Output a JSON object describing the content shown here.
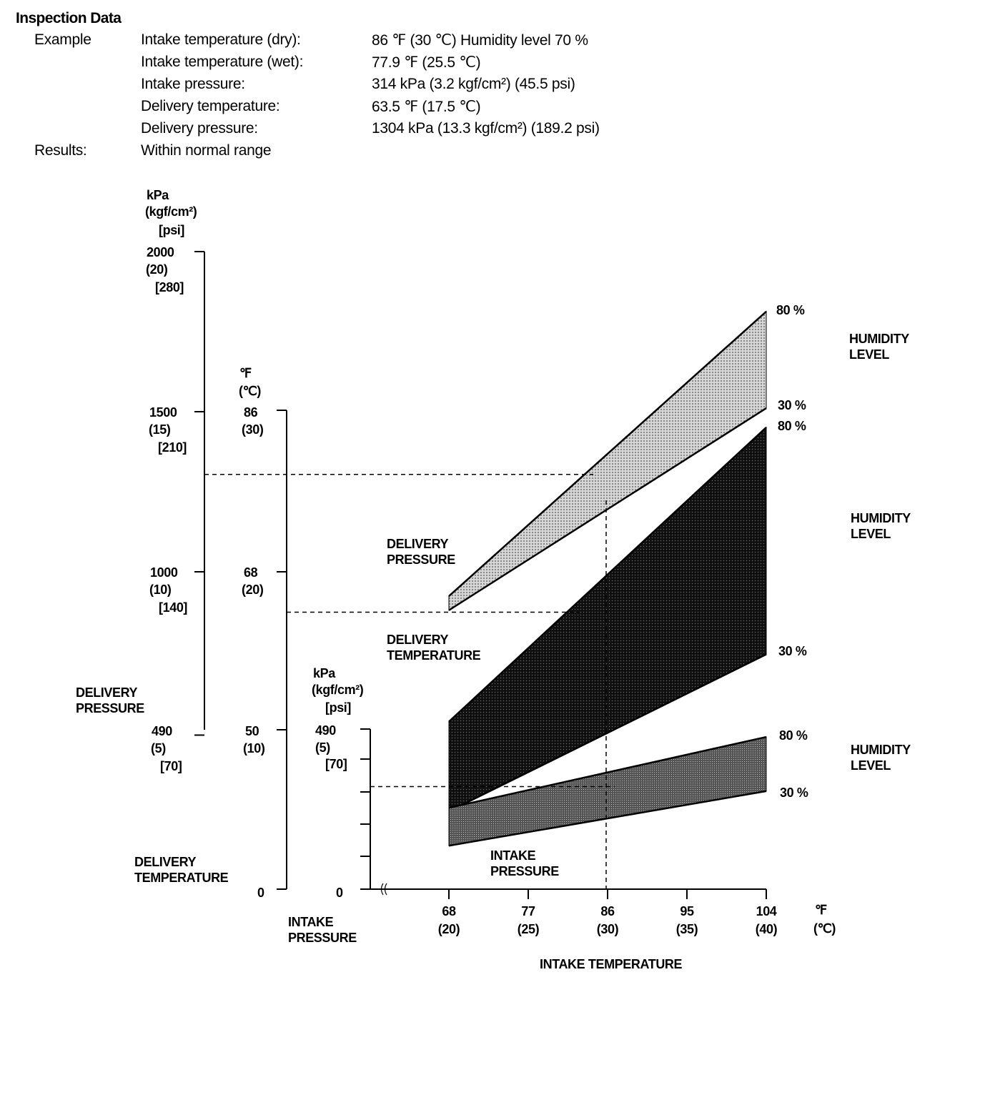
{
  "inspection": {
    "title": "Inspection Data",
    "example_label": "Example",
    "rows": [
      {
        "label": "Intake temperature (dry):",
        "value": "86 ℉ (30 ℃) Humidity level 70 %"
      },
      {
        "label": "Intake temperature (wet):",
        "value": "77.9 ℉ (25.5 ℃)"
      },
      {
        "label": "Intake pressure:",
        "value": "314 kPa (3.2 kgf/cm²) (45.5 psi)"
      },
      {
        "label": "Delivery temperature:",
        "value": "63.5 ℉ (17.5 ℃)"
      },
      {
        "label": "Delivery pressure:",
        "value": "1304 kPa (13.3 kgf/cm²) (189.2 psi)"
      }
    ],
    "results_label": "Results:",
    "results_value": "Within normal range"
  },
  "chart_data": {
    "type": "area",
    "xlabel": "INTAKE TEMPERATURE",
    "x_unit": "℉",
    "x_unit_alt": "(℃)",
    "x_ticks": [
      {
        "f": "68",
        "c": "(20)",
        "value": 68
      },
      {
        "f": "77",
        "c": "(25)",
        "value": 77
      },
      {
        "f": "86",
        "c": "(30)",
        "value": 86
      },
      {
        "f": "95",
        "c": "(35)",
        "value": 95
      },
      {
        "f": "104",
        "c": "(40)",
        "value": 104
      }
    ],
    "xlim": [
      68,
      104
    ],
    "axes": {
      "delivery_pressure": {
        "label": "DELIVERY PRESSURE",
        "units": [
          "kPa",
          "(kgf/cm²)",
          "[psi]"
        ],
        "ticks": [
          {
            "kpa": "2000",
            "kgf": "(20)",
            "psi": "[280]",
            "value": 2000
          },
          {
            "kpa": "1500",
            "kgf": "(15)",
            "psi": "[210]",
            "value": 1500
          },
          {
            "kpa": "1000",
            "kgf": "(10)",
            "psi": "[140]",
            "value": 1000
          },
          {
            "kpa": "490",
            "kgf": "(5)",
            "psi": "[70]",
            "value": 490
          }
        ]
      },
      "delivery_temperature": {
        "label": "DELIVERY TEMPERATURE",
        "units": [
          "℉",
          "(℃)"
        ],
        "ticks": [
          {
            "f": "86",
            "c": "(30)",
            "value": 86
          },
          {
            "f": "68",
            "c": "(20)",
            "value": 68
          },
          {
            "f": "50",
            "c": "(10)",
            "value": 50
          },
          {
            "f": "0",
            "c": "",
            "value": 0
          }
        ]
      },
      "intake_pressure": {
        "label": "INTAKE PRESSURE",
        "units": [
          "kPa",
          "(kgf/cm²)",
          "[psi]"
        ],
        "ticks": [
          {
            "kpa": "490",
            "kgf": "(5)",
            "psi": "[70]",
            "value": 490
          },
          {
            "kpa": "0",
            "value": 0
          }
        ]
      }
    },
    "series": [
      {
        "name": "DELIVERY PRESSURE",
        "axis": "delivery_pressure",
        "unit": "kPa",
        "color": "#bdbdbd",
        "upper": {
          "label": "80 %",
          "x": [
            68,
            104
          ],
          "y": [
            924,
            1813
          ]
        },
        "lower": {
          "label": "30 %",
          "x": [
            68,
            104
          ],
          "y": [
            880,
            1511
          ]
        }
      },
      {
        "name": "DELIVERY TEMPERATURE",
        "axis": "delivery_temperature",
        "unit": "℉",
        "color": "#1a1a1a",
        "upper": {
          "label": "80 %",
          "x": [
            68,
            104
          ],
          "y": [
            51.3,
            84.1
          ]
        },
        "lower": {
          "label": "30 %",
          "x": [
            68,
            104
          ],
          "y": [
            40.9,
            58.8
          ]
        }
      },
      {
        "name": "INTAKE PRESSURE",
        "axis": "intake_pressure",
        "unit": "kPa",
        "color": "#6b6b6b",
        "upper": {
          "label": "80 %",
          "x": [
            68,
            104
          ],
          "y": [
            249,
            466
          ]
        },
        "lower": {
          "label": "30 %",
          "x": [
            68,
            104
          ],
          "y": [
            133,
            300
          ]
        }
      }
    ],
    "humidity_label": [
      "HUMIDITY",
      "LEVEL"
    ],
    "example_point": {
      "intake_temp_f": 86,
      "delivery_pressure_kpa": 1304,
      "delivery_temp_f": 63.5,
      "intake_pressure_kpa": 314
    }
  }
}
